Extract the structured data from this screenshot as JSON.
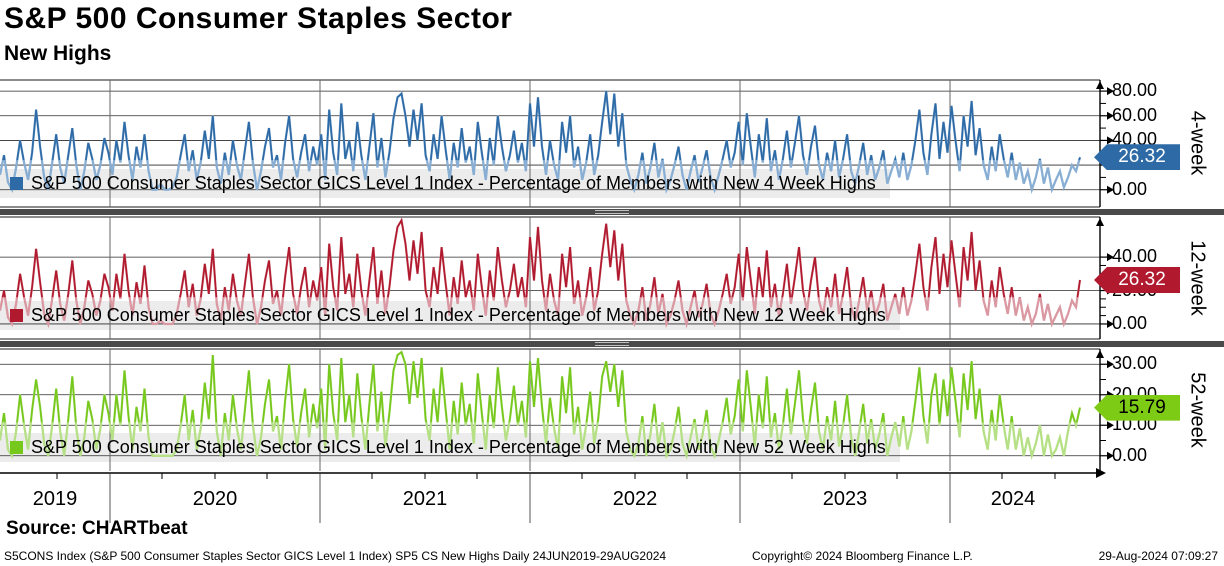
{
  "header": {
    "title": "S&P 500 Consumer Staples Sector",
    "subtitle": "New Highs"
  },
  "source_label": "Source: CHARTbeat",
  "footer": {
    "left": "S5CONS Index (S&P 500 Consumer Staples Sector GICS Level 1 Index) SP5 CS New Highs  Daily 24JUN2019-29AUG2024",
    "center": "Copyright© 2024 Bloomberg Finance L.P.",
    "right": "29-Aug-2024 07:09:27"
  },
  "x_axis": {
    "years": [
      "2019",
      "2020",
      "2021",
      "2022",
      "2023",
      "2024"
    ],
    "range": "24JUN2019-29AUG2024"
  },
  "chart_data": [
    {
      "type": "line",
      "name": "4-week",
      "legend": "S&P 500 Consumer Staples Sector GICS Level 1 Index - Percentage of Members with New 4 Week Highs",
      "last_value": "26.32",
      "ylim": [
        -14,
        89
      ],
      "major_ticks": [
        0,
        20,
        40,
        60,
        80
      ],
      "minor_step": 10,
      "color_dark": "#2e6ba6",
      "color_light": "#88aed4",
      "badge_bg": "#2e6ba6",
      "badge_text_color": "#ffffff",
      "values": [
        12,
        28,
        6,
        0,
        18,
        40,
        22,
        8,
        30,
        65,
        35,
        10,
        0,
        22,
        45,
        18,
        5,
        28,
        50,
        20,
        0,
        15,
        38,
        25,
        8,
        20,
        42,
        30,
        12,
        40,
        22,
        55,
        28,
        8,
        35,
        18,
        45,
        15,
        0,
        0,
        5,
        0,
        0,
        2,
        10,
        28,
        45,
        15,
        32,
        8,
        22,
        48,
        25,
        60,
        18,
        5,
        30,
        12,
        40,
        20,
        8,
        32,
        55,
        22,
        0,
        15,
        35,
        50,
        18,
        28,
        8,
        38,
        60,
        25,
        10,
        30,
        45,
        15,
        35,
        20,
        45,
        8,
        65,
        30,
        12,
        70,
        25,
        40,
        15,
        55,
        28,
        8,
        35,
        62,
        18,
        42,
        10,
        30,
        58,
        75,
        78,
        60,
        35,
        65,
        40,
        70,
        28,
        15,
        45,
        25,
        60,
        32,
        8,
        38,
        18,
        50,
        22,
        35,
        12,
        55,
        30,
        8,
        42,
        20,
        60,
        35,
        15,
        28,
        48,
        22,
        38,
        15,
        70,
        35,
        75,
        35,
        12,
        40,
        20,
        8,
        55,
        30,
        60,
        18,
        35,
        8,
        22,
        45,
        12,
        28,
        55,
        80,
        45,
        78,
        35,
        62,
        20,
        8,
        0,
        12,
        30,
        5,
        18,
        38,
        10,
        25,
        0,
        8,
        20,
        35,
        12,
        0,
        15,
        28,
        6,
        18,
        32,
        10,
        0,
        12,
        25,
        40,
        18,
        30,
        55,
        20,
        62,
        35,
        10,
        45,
        22,
        58,
        15,
        32,
        8,
        25,
        48,
        18,
        38,
        60,
        28,
        12,
        35,
        52,
        20,
        8,
        30,
        15,
        40,
        10,
        25,
        45,
        15,
        5,
        20,
        38,
        12,
        28,
        8,
        18,
        32,
        5,
        15,
        25,
        10,
        30,
        8,
        20,
        40,
        65,
        30,
        12,
        45,
        70,
        25,
        55,
        30,
        68,
        40,
        15,
        60,
        35,
        72,
        28,
        50,
        20,
        8,
        35,
        15,
        45,
        25,
        10,
        30,
        8,
        22,
        5,
        15,
        0,
        10,
        25,
        5,
        18,
        0,
        8,
        15,
        2,
        10,
        20,
        15,
        26.32
      ]
    },
    {
      "type": "line",
      "name": "12-week",
      "legend": "S&P 500 Consumer Staples Sector GICS Level 1 Index - Percentage of Members with New 12 Week Highs",
      "last_value": "26.32",
      "ylim": [
        -9,
        64
      ],
      "major_ticks": [
        0,
        20,
        40
      ],
      "minor_step": 5,
      "color_dark": "#b11a2e",
      "color_light": "#da98a2",
      "badge_bg": "#b11a2e",
      "badge_text_color": "#ffffff",
      "values": [
        8,
        20,
        4,
        0,
        12,
        30,
        16,
        5,
        22,
        45,
        25,
        6,
        0,
        15,
        32,
        12,
        2,
        18,
        38,
        14,
        0,
        10,
        26,
        18,
        5,
        14,
        30,
        22,
        8,
        30,
        15,
        42,
        20,
        5,
        25,
        12,
        35,
        10,
        0,
        0,
        2,
        0,
        0,
        0,
        6,
        18,
        32,
        10,
        24,
        5,
        15,
        36,
        18,
        45,
        12,
        2,
        22,
        8,
        30,
        14,
        5,
        24,
        42,
        16,
        0,
        10,
        26,
        38,
        12,
        20,
        5,
        28,
        46,
        18,
        6,
        22,
        34,
        10,
        26,
        14,
        34,
        5,
        48,
        22,
        8,
        52,
        18,
        30,
        10,
        42,
        20,
        5,
        26,
        46,
        12,
        32,
        6,
        22,
        44,
        58,
        62,
        48,
        26,
        50,
        30,
        55,
        20,
        10,
        34,
        18,
        46,
        24,
        5,
        28,
        12,
        38,
        16,
        26,
        8,
        42,
        22,
        5,
        32,
        14,
        46,
        26,
        10,
        20,
        36,
        16,
        28,
        10,
        52,
        26,
        58,
        26,
        8,
        30,
        14,
        5,
        42,
        22,
        46,
        12,
        26,
        5,
        16,
        34,
        8,
        20,
        42,
        60,
        34,
        56,
        26,
        48,
        14,
        5,
        0,
        8,
        22,
        2,
        12,
        28,
        6,
        18,
        0,
        5,
        14,
        26,
        8,
        0,
        10,
        20,
        4,
        12,
        24,
        6,
        0,
        8,
        18,
        30,
        12,
        22,
        42,
        14,
        46,
        26,
        6,
        34,
        16,
        44,
        10,
        24,
        5,
        18,
        36,
        12,
        28,
        46,
        20,
        8,
        26,
        40,
        14,
        5,
        22,
        10,
        30,
        6,
        18,
        34,
        10,
        2,
        14,
        28,
        8,
        20,
        5,
        12,
        24,
        2,
        10,
        18,
        6,
        22,
        5,
        14,
        30,
        48,
        22,
        8,
        34,
        52,
        18,
        42,
        22,
        50,
        30,
        10,
        46,
        26,
        55,
        20,
        38,
        14,
        5,
        26,
        10,
        34,
        18,
        6,
        22,
        5,
        16,
        2,
        10,
        0,
        6,
        18,
        2,
        12,
        0,
        5,
        10,
        0,
        6,
        14,
        10,
        26.32
      ]
    },
    {
      "type": "line",
      "name": "52-week",
      "legend": "S&P 500 Consumer Staples Sector GICS Level 1 Index - Percentage of Members with New 52 Week Highs",
      "last_value": "15.79",
      "ylim": [
        -5,
        35
      ],
      "major_ticks": [
        0,
        10,
        20,
        30
      ],
      "minor_step": 5,
      "color_dark": "#76c81c",
      "color_light": "#b6e086",
      "badge_bg": "#7ecb16",
      "badge_text_color": "#000000",
      "values": [
        5,
        14,
        2,
        0,
        8,
        20,
        10,
        2,
        15,
        25,
        16,
        4,
        0,
        10,
        22,
        8,
        0,
        12,
        26,
        9,
        0,
        6,
        18,
        12,
        2,
        9,
        20,
        14,
        5,
        20,
        10,
        28,
        13,
        2,
        16,
        8,
        22,
        6,
        0,
        0,
        0,
        0,
        0,
        0,
        2,
        10,
        20,
        5,
        15,
        2,
        9,
        24,
        12,
        33,
        8,
        0,
        14,
        5,
        20,
        9,
        2,
        15,
        28,
        10,
        0,
        6,
        17,
        25,
        8,
        13,
        2,
        18,
        30,
        12,
        3,
        14,
        22,
        6,
        17,
        9,
        22,
        2,
        30,
        14,
        5,
        32,
        11,
        20,
        6,
        27,
        13,
        2,
        17,
        30,
        8,
        21,
        3,
        14,
        28,
        33,
        34,
        30,
        17,
        31,
        19,
        32,
        12,
        5,
        22,
        11,
        29,
        15,
        2,
        18,
        7,
        24,
        10,
        17,
        4,
        27,
        14,
        2,
        20,
        9,
        29,
        16,
        5,
        12,
        23,
        10,
        18,
        6,
        31,
        16,
        32,
        16,
        4,
        19,
        9,
        2,
        26,
        14,
        29,
        7,
        16,
        2,
        10,
        21,
        4,
        12,
        26,
        31,
        21,
        30,
        16,
        28,
        8,
        2,
        0,
        4,
        13,
        0,
        7,
        17,
        3,
        11,
        0,
        2,
        8,
        16,
        4,
        0,
        6,
        12,
        2,
        7,
        15,
        3,
        0,
        5,
        11,
        19,
        7,
        13,
        25,
        8,
        28,
        16,
        3,
        20,
        9,
        26,
        6,
        14,
        2,
        10,
        22,
        7,
        17,
        28,
        12,
        4,
        15,
        24,
        8,
        2,
        13,
        5,
        18,
        3,
        10,
        20,
        6,
        0,
        8,
        17,
        4,
        12,
        2,
        7,
        14,
        0,
        6,
        11,
        3,
        13,
        2,
        8,
        18,
        29,
        13,
        4,
        20,
        27,
        10,
        25,
        13,
        29,
        18,
        6,
        27,
        15,
        31,
        12,
        22,
        8,
        2,
        15,
        5,
        20,
        10,
        2,
        13,
        2,
        9,
        0,
        6,
        0,
        4,
        10,
        0,
        7,
        0,
        2,
        6,
        0,
        8,
        14,
        10,
        15.79
      ]
    }
  ]
}
